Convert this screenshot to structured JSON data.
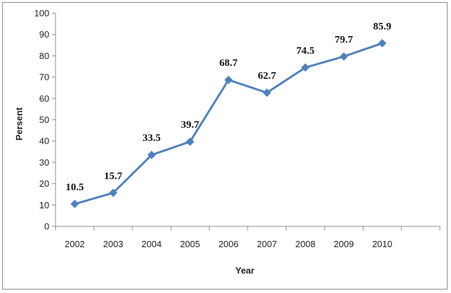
{
  "chart_data": {
    "type": "line",
    "title": "",
    "xlabel": "Year",
    "ylabel": "Persent",
    "x": [
      "2002",
      "2003",
      "2004",
      "2005",
      "2006",
      "2007",
      "2008",
      "2009",
      "2010"
    ],
    "series": [
      {
        "values": [
          10.5,
          15.7,
          33.5,
          39.7,
          68.7,
          62.7,
          74.5,
          79.7,
          85.9
        ],
        "labels": [
          "10.5",
          "15.7",
          "33.5",
          "39.7",
          "68.7",
          "62.7",
          "74.5",
          "79.7",
          "85.9"
        ],
        "color": "#4f81bd",
        "marker": "diamond"
      }
    ],
    "ylim": [
      0,
      100
    ],
    "yticks": [
      "0",
      "10",
      "20",
      "30",
      "40",
      "50",
      "60",
      "70",
      "80",
      "90",
      "100"
    ],
    "grid": false,
    "legend": "none"
  }
}
